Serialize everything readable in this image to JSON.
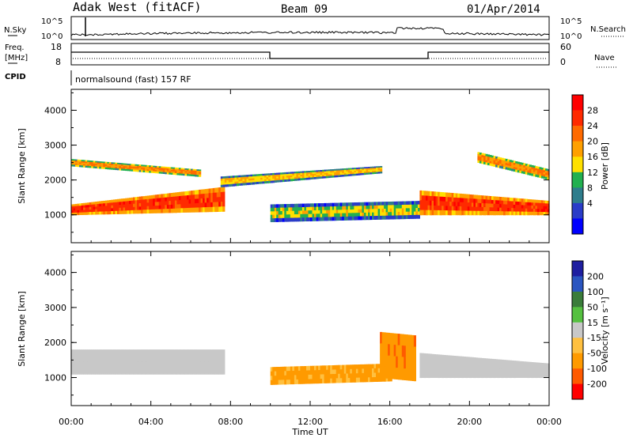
{
  "header": {
    "station": "Adak West (fitACF)",
    "beam": "Beam 09",
    "date": "01/Apr/2014"
  },
  "panels": {
    "nsky": {
      "left_label": "N.Sky",
      "right_label": "N.Search",
      "left_ticks": [
        "10^5",
        "10^0"
      ],
      "right_ticks": [
        "10^5",
        "10^0"
      ]
    },
    "freq": {
      "left_label_1": "Freq.",
      "left_label_2": "[MHz]",
      "right_label": "Nave",
      "left_ticks": [
        "18",
        "8"
      ],
      "right_ticks": [
        "60",
        "0"
      ]
    },
    "cpid": {
      "label": "CPID",
      "text": "normalsound (fast) 157 RF"
    }
  },
  "x_axis": {
    "label": "Time UT",
    "ticks": [
      "00:00",
      "04:00",
      "08:00",
      "12:00",
      "16:00",
      "20:00",
      "00:00"
    ]
  },
  "power_colorbar": {
    "label": "Power [dB]",
    "ticks": [
      "28",
      "24",
      "20",
      "16",
      "12",
      "8",
      "4"
    ],
    "colors": [
      "#ff0000",
      "#ff2a00",
      "#ff6a00",
      "#ffa000",
      "#ffe000",
      "#22b050",
      "#2e7d8c",
      "#2a3cc8",
      "#0000ff"
    ]
  },
  "velocity_colorbar": {
    "label": "Velocity [m s⁻¹]",
    "ticks": [
      "200",
      "100",
      "50",
      "15",
      "-15",
      "-50",
      "-100",
      "-200"
    ],
    "colors": [
      "#1e1ea0",
      "#2a55c0",
      "#3a7c3a",
      "#55c040",
      "#c8c8c8",
      "#ffc040",
      "#ff9a00",
      "#ff5a00",
      "#ff0000"
    ]
  },
  "chart_data": [
    {
      "type": "heatmap",
      "panel": "power",
      "xlabel": "",
      "ylabel": "Slant Range [km]",
      "yticks": [
        1000,
        2000,
        3000,
        4000
      ],
      "xlim": [
        0,
        24
      ],
      "ylim": [
        200,
        4600
      ],
      "features": [
        {
          "t": [
            0,
            7.6
          ],
          "r_start": [
            1300,
            1800
          ],
          "r_end": [
            1000,
            1100
          ],
          "db": 26
        },
        {
          "t": [
            0,
            6.4
          ],
          "r_start": [
            2600,
            2300
          ],
          "r_end": [
            2400,
            2100
          ],
          "db": 20
        },
        {
          "t": [
            7.5,
            15.5
          ],
          "r_start": [
            2100,
            2400
          ],
          "r_end": [
            1800,
            2200
          ],
          "db": 16
        },
        {
          "t": [
            10,
            17.5
          ],
          "r_start": [
            1300,
            1400
          ],
          "r_end": [
            800,
            900
          ],
          "db": 14
        },
        {
          "t": [
            17.5,
            24
          ],
          "r_start": [
            1700,
            1400
          ],
          "r_end": [
            1000,
            1000
          ],
          "db": 26
        },
        {
          "t": [
            20.4,
            24
          ],
          "r_start": [
            2800,
            2300
          ],
          "r_end": [
            2500,
            2000
          ],
          "db": 20
        }
      ]
    },
    {
      "type": "heatmap",
      "panel": "velocity",
      "xlabel": "Time UT",
      "ylabel": "Slant Range [km]",
      "yticks": [
        1000,
        2000,
        3000,
        4000
      ],
      "xlim": [
        0,
        24
      ],
      "ylim": [
        200,
        4600
      ],
      "features": [
        {
          "t": [
            0,
            7.6
          ],
          "r_start": [
            1800,
            1800
          ],
          "r_end": [
            1100,
            1100
          ],
          "v": 0
        },
        {
          "t": [
            10,
            16
          ],
          "r_start": [
            1300,
            1400
          ],
          "r_end": [
            800,
            900
          ],
          "v": -60
        },
        {
          "t": [
            15.5,
            17.3
          ],
          "r_start": [
            2300,
            2200
          ],
          "r_end": [
            1000,
            900
          ],
          "v": -90
        },
        {
          "t": [
            17.5,
            24
          ],
          "r_start": [
            1700,
            1400
          ],
          "r_end": [
            1000,
            1000
          ],
          "v": 0
        }
      ]
    }
  ]
}
